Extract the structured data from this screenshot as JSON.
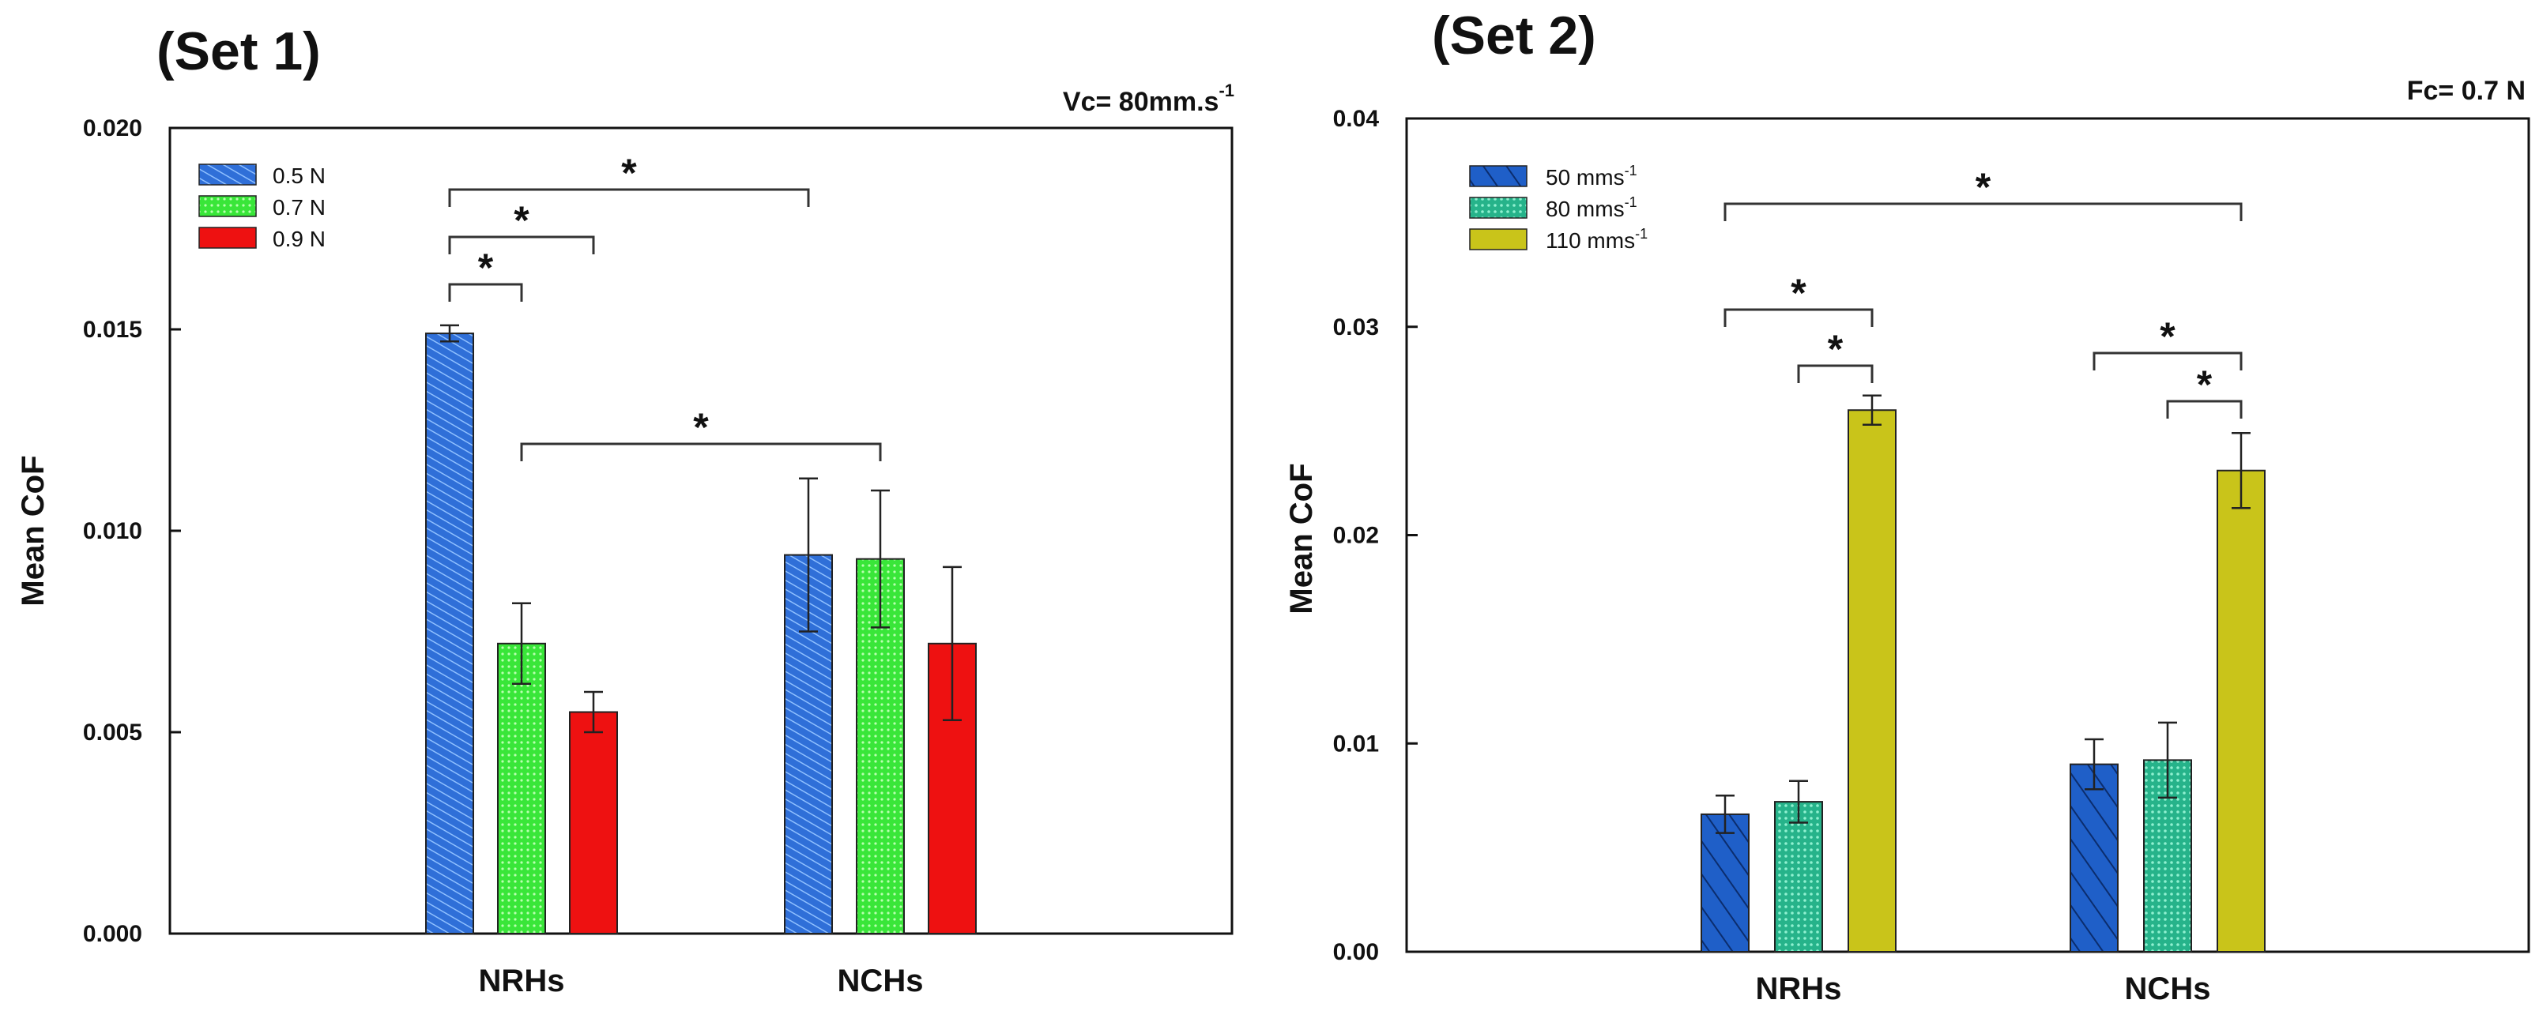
{
  "chart_data": [
    {
      "type": "bar",
      "title": "(Set 1)",
      "condition": {
        "main": "Vc= 80mm.s",
        "sup": "-1"
      },
      "xlabel": "",
      "ylabel": "Mean CoF",
      "ylim": [
        0,
        0.02
      ],
      "yticks": [
        "0.000",
        "0.005",
        "0.010",
        "0.015",
        "0.020"
      ],
      "categories": [
        "NRHs",
        "NCHs"
      ],
      "series": [
        {
          "name": "0.5 N",
          "color": "#2f6fd8",
          "pattern": "diagonal-hatch",
          "values": [
            0.0149,
            0.0094
          ],
          "errors": [
            0.0002,
            0.0019
          ]
        },
        {
          "name": "0.7 N",
          "color": "#39e639",
          "pattern": "dots",
          "values": [
            0.0072,
            0.0093
          ],
          "errors": [
            0.001,
            0.0017
          ]
        },
        {
          "name": "0.9 N",
          "color": "#ee1111",
          "pattern": "solid",
          "values": [
            0.0055,
            0.0072
          ],
          "errors": [
            0.0005,
            0.0019
          ]
        }
      ],
      "significance": [
        {
          "from": [
            0,
            0
          ],
          "to": [
            0,
            1
          ],
          "label": "*"
        },
        {
          "from": [
            0,
            0
          ],
          "to": [
            0,
            2
          ],
          "label": "*"
        },
        {
          "from": [
            0,
            0
          ],
          "to": [
            1,
            0
          ],
          "label": "*"
        },
        {
          "from": [
            0,
            1
          ],
          "to": [
            1,
            1
          ],
          "label": "*"
        }
      ]
    },
    {
      "type": "bar",
      "title": "(Set 2)",
      "condition": {
        "main": "Fc= 0.7 N",
        "sup": ""
      },
      "xlabel": "",
      "ylabel": "Mean CoF",
      "ylim": [
        0,
        0.04
      ],
      "yticks": [
        "0.00",
        "0.01",
        "0.02",
        "0.03",
        "0.04"
      ],
      "categories": [
        "NRHs",
        "NCHs"
      ],
      "series": [
        {
          "name": "50 mms",
          "sup": "-1",
          "color": "#1f5fc8",
          "pattern": "diagonal-hatch",
          "values": [
            0.0066,
            0.009
          ],
          "errors": [
            0.0009,
            0.0012
          ]
        },
        {
          "name": "80 mms",
          "sup": "-1",
          "color": "#26b38a",
          "pattern": "dots",
          "values": [
            0.0072,
            0.0092
          ],
          "errors": [
            0.001,
            0.0018
          ]
        },
        {
          "name": "110 mms",
          "sup": "-1",
          "color": "#c9c41a",
          "pattern": "solid",
          "values": [
            0.026,
            0.0231
          ],
          "errors": [
            0.0007,
            0.0018
          ]
        }
      ],
      "significance": [
        {
          "from": [
            0,
            0
          ],
          "to": [
            0,
            2
          ],
          "label": "*"
        },
        {
          "from": [
            0,
            1
          ],
          "to": [
            0,
            2
          ],
          "label": "*"
        },
        {
          "from": [
            1,
            0
          ],
          "to": [
            1,
            2
          ],
          "label": "*"
        },
        {
          "from": [
            1,
            1
          ],
          "to": [
            1,
            2
          ],
          "label": "*"
        },
        {
          "from": [
            0,
            0
          ],
          "to": [
            1,
            2
          ],
          "label": "*"
        }
      ]
    }
  ]
}
